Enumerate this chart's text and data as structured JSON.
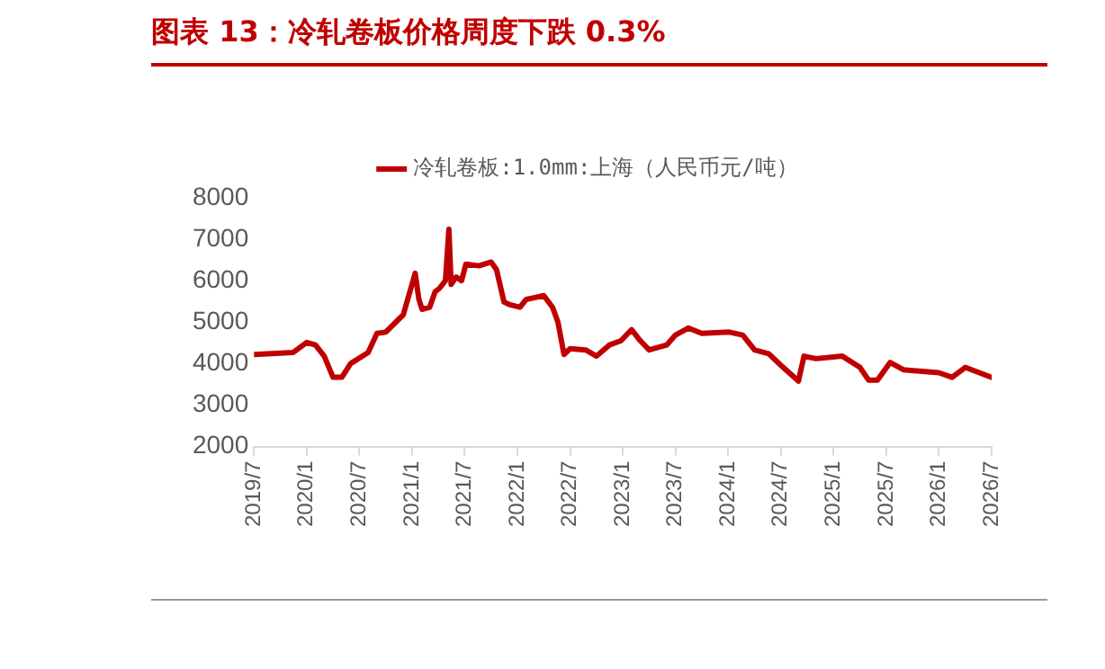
{
  "chart_data": {
    "type": "line",
    "title": "图表 13：冷轧卷板价格周度下跌 0.3%",
    "x": [
      "2019-07-01",
      "2019-11-15",
      "2020-01-01",
      "2020-02-01",
      "2020-03-01",
      "2020-04-01",
      "2020-05-01",
      "2020-06-01",
      "2020-08-01",
      "2020-09-01",
      "2020-10-01",
      "2020-12-01",
      "2021-01-12",
      "2021-01-25",
      "2021-02-05",
      "2021-03-01",
      "2021-03-20",
      "2021-04-05",
      "2021-04-25",
      "2021-05-07",
      "2021-05-15",
      "2021-06-01",
      "2021-06-20",
      "2021-07-05",
      "2021-08-20",
      "2021-10-01",
      "2021-10-20",
      "2021-11-15",
      "2021-12-05",
      "2022-01-10",
      "2022-02-01",
      "2022-03-05",
      "2022-04-01",
      "2022-05-01",
      "2022-05-20",
      "2022-06-10",
      "2022-07-01",
      "2022-08-25",
      "2022-10-01",
      "2022-11-15",
      "2022-12-25",
      "2023-02-01",
      "2023-03-01",
      "2023-04-01",
      "2023-06-01",
      "2023-07-01",
      "2023-08-15",
      "2023-10-01",
      "2024-01-05",
      "2024-02-20",
      "2024-04-01",
      "2024-05-20",
      "2024-07-01",
      "2024-09-01",
      "2024-09-20",
      "2024-11-01",
      "2025-02-01",
      "2025-04-01",
      "2025-05-01",
      "2025-06-01",
      "2025-07-15",
      "2025-09-01",
      "2026-01-01",
      "2026-02-15",
      "2026-04-01",
      "2026-07-01"
    ],
    "series": [
      {
        "name": "冷轧卷板:1.0mm:上海（人民币元/吨）",
        "color": "#c00000",
        "values": [
          4220,
          4270,
          4510,
          4450,
          4180,
          3670,
          3670,
          4000,
          4270,
          4730,
          4760,
          5180,
          6180,
          5550,
          5310,
          5360,
          5730,
          5820,
          6000,
          7240,
          5910,
          6090,
          6000,
          6400,
          6360,
          6450,
          6270,
          5490,
          5420,
          5360,
          5550,
          5600,
          5640,
          5360,
          5000,
          4220,
          4360,
          4330,
          4180,
          4450,
          4550,
          4820,
          4550,
          4330,
          4450,
          4690,
          4860,
          4730,
          4760,
          4690,
          4330,
          4240,
          3960,
          3580,
          4180,
          4120,
          4180,
          3910,
          3600,
          3600,
          4030,
          3850,
          3780,
          3670,
          3910,
          3670
        ]
      }
    ],
    "xlim": [
      "2019-07",
      "2026-07"
    ],
    "xticks": [
      {
        "value": "2019-07",
        "label": "2019/7"
      },
      {
        "value": "2020-01",
        "label": "2020/1"
      },
      {
        "value": "2020-07",
        "label": "2020/7"
      },
      {
        "value": "2021-01",
        "label": "2021/1"
      },
      {
        "value": "2021-07",
        "label": "2021/7"
      },
      {
        "value": "2022-01",
        "label": "2022/1"
      },
      {
        "value": "2022-07",
        "label": "2022/7"
      },
      {
        "value": "2023-01",
        "label": "2023/1"
      },
      {
        "value": "2023-07",
        "label": "2023/7"
      },
      {
        "value": "2024-01",
        "label": "2024/1"
      },
      {
        "value": "2024-07",
        "label": "2024/7"
      },
      {
        "value": "2025-01",
        "label": "2025/1"
      },
      {
        "value": "2025-07",
        "label": "2025/7"
      },
      {
        "value": "2026-01",
        "label": "2026/1"
      },
      {
        "value": "2026-07",
        "label": "2026/7"
      }
    ],
    "ylim": [
      2000,
      8000
    ],
    "yticks": [
      2000,
      3000,
      4000,
      5000,
      6000,
      7000,
      8000
    ],
    "grid": false,
    "legend": "top",
    "marker": "none",
    "line_style": "solid"
  }
}
